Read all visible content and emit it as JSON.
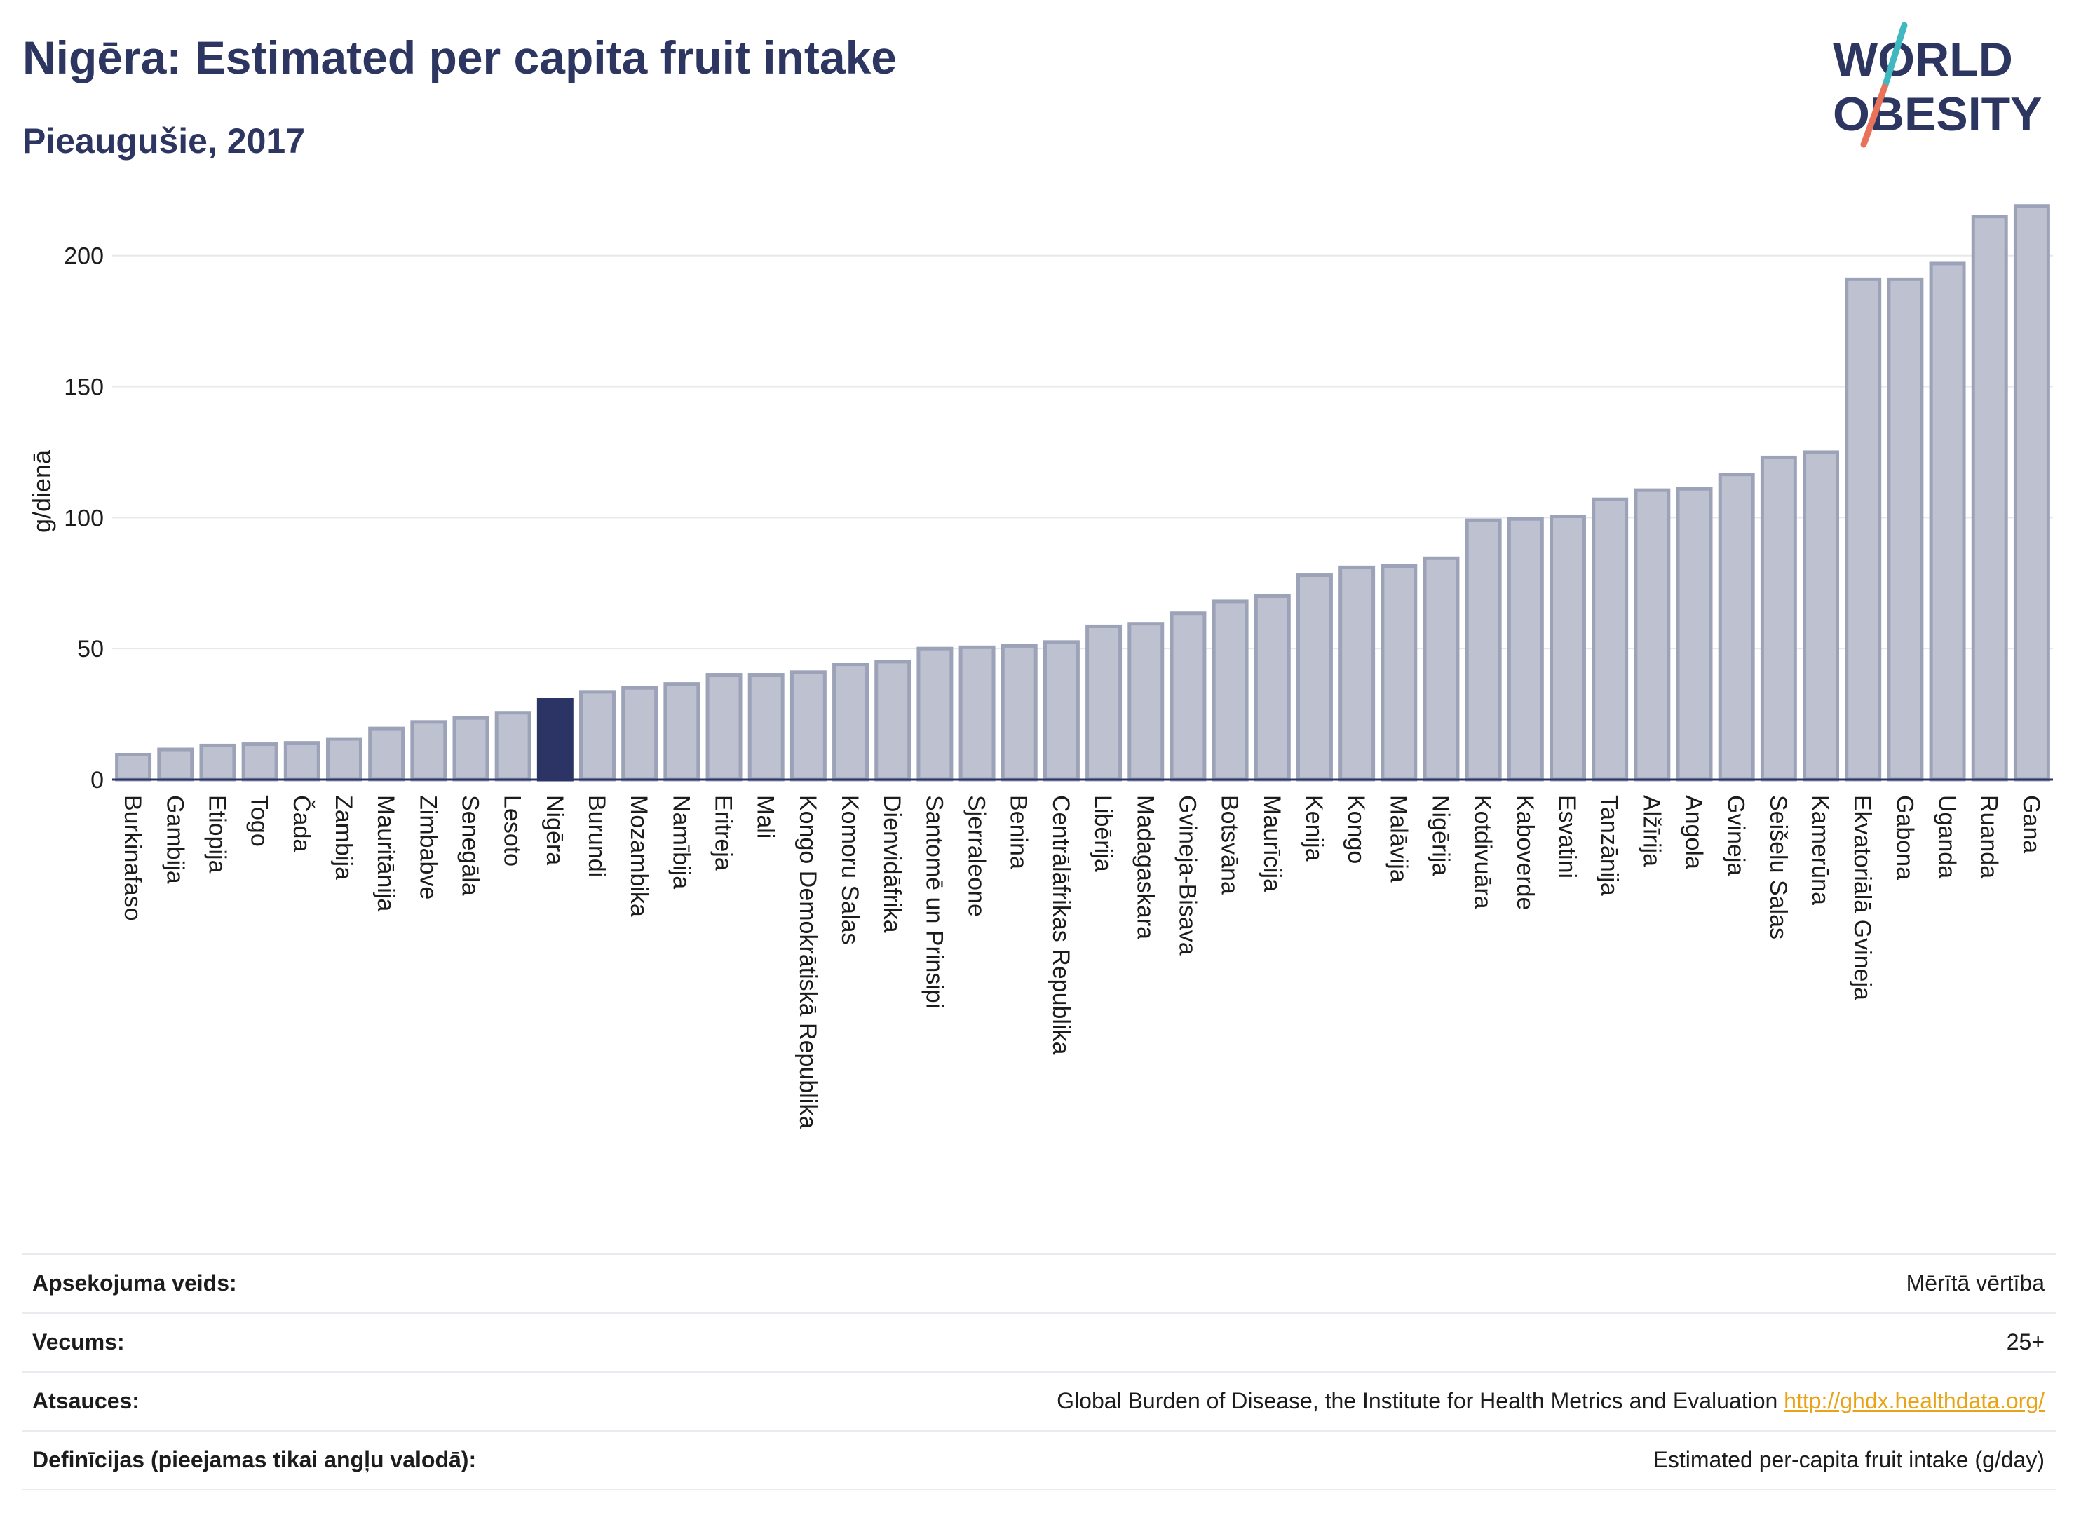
{
  "header": {
    "title": "Nigēra: Estimated per capita fruit intake",
    "subtitle": "Pieaugušie, 2017"
  },
  "logo": {
    "line1": "WORLD",
    "line2": "OBESITY",
    "text_color": "#2d3561",
    "slash_top_color": "#3fb8c0",
    "slash_bottom_color": "#e8735a"
  },
  "colors": {
    "bar_fill": "#bec2d0",
    "bar_stroke": "#9ca2b8",
    "highlight": "#2b3464",
    "grid": "#e6e8ee",
    "axis": "#2b3464"
  },
  "chart_data": {
    "type": "bar",
    "title": "Nigēra: Estimated per capita fruit intake",
    "subtitle": "Pieaugušie, 2017",
    "xlabel": "",
    "ylabel": "g/dienā",
    "ylim": [
      0,
      220
    ],
    "yticks": [
      0,
      50,
      100,
      150,
      200
    ],
    "grid": true,
    "highlight_category": "Nigēra",
    "categories": [
      "Burkinafaso",
      "Gambija",
      "Etiopija",
      "Togo",
      "Čada",
      "Zambija",
      "Mauritānija",
      "Zimbabve",
      "Senegāla",
      "Lesoto",
      "Nigēra",
      "Burundi",
      "Mozambika",
      "Namībija",
      "Eritreja",
      "Mali",
      "Kongo Demokrātiskā Republika",
      "Komoru Salas",
      "Dienvidāfrika",
      "Santomē un Prinsipi",
      "Sjerraleone",
      "Benina",
      "Centrālāfrikas Republika",
      "Libērija",
      "Madagaskara",
      "Gvineja-Bisava",
      "Botsvāna",
      "Maurīcija",
      "Kenija",
      "Kongo",
      "Malāvija",
      "Nigērija",
      "Kotdivuāra",
      "Kaboverde",
      "Esvatini",
      "Tanzānija",
      "Alžīrija",
      "Angola",
      "Gvineja",
      "Seišelu Salas",
      "Kamerūna",
      "Ekvatoriālā Gvineja",
      "Gabona",
      "Uganda",
      "Ruanda",
      "Gana"
    ],
    "values": [
      9.5,
      11.5,
      13,
      13.5,
      14,
      15.5,
      19.5,
      22,
      23.5,
      25.5,
      30.5,
      33.5,
      35,
      36.5,
      40,
      40,
      41,
      44,
      45,
      50,
      50.5,
      51,
      52.5,
      58.5,
      59.5,
      63.5,
      68,
      70,
      78,
      81,
      81.5,
      84.5,
      99,
      99.5,
      100.5,
      107,
      110.5,
      111,
      116.5,
      123,
      125,
      191,
      191,
      197,
      215,
      219
    ]
  },
  "meta": {
    "rows": [
      {
        "label": "Apsekojuma veids:",
        "value": "Mērītā vērtība",
        "link": ""
      },
      {
        "label": "Vecums:",
        "value": "25+",
        "link": ""
      },
      {
        "label": "Atsauces:",
        "value": "Global Burden of Disease, the Institute for Health Metrics and Evaluation ",
        "link": "http://ghdx.healthdata.org/"
      },
      {
        "label": "Definīcijas (pieejamas tikai angļu valodā):",
        "value": "Estimated per-capita fruit intake (g/day)",
        "link": ""
      }
    ]
  }
}
